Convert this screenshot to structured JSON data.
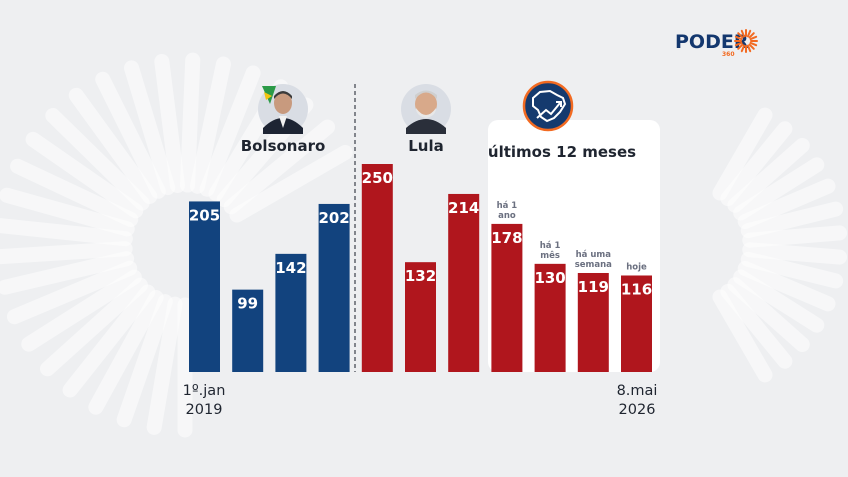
{
  "brand": {
    "name": "PODER",
    "suffix": "360",
    "accent": "#f26a21",
    "color": "#13376e"
  },
  "colors": {
    "bolsonaro": "#12437e",
    "lula": "#b0161d",
    "background": "#eeeff1",
    "panel": "#ffffff"
  },
  "icons": {
    "avatar_bolsonaro": "portrait-icon",
    "avatar_lula": "portrait-icon",
    "trend": "brazil-map-trend-icon",
    "brand": "sunburst-icon"
  },
  "labels": {
    "bolsonaro": "Bolsonaro",
    "lula": "Lula",
    "panel_title": "últimos 12 meses",
    "start_date_line1": "1º.jan",
    "start_date_line2": "2019",
    "end_date_line1": "8.mai",
    "end_date_line2": "2026"
  },
  "chart_data": {
    "type": "bar",
    "values": [
      205,
      99,
      142,
      202,
      250,
      132,
      214,
      178,
      130,
      119,
      116
    ],
    "groups": [
      "bolsonaro",
      "bolsonaro",
      "bolsonaro",
      "bolsonaro",
      "lula",
      "lula",
      "lula",
      "lula",
      "lula",
      "lula",
      "lula"
    ],
    "notes": [
      [],
      [],
      [],
      [],
      [],
      [],
      [],
      [
        "há 1",
        "ano"
      ],
      [
        "há 1",
        "mês"
      ],
      [
        "há uma",
        "semana"
      ],
      [
        "hoje"
      ]
    ],
    "ylim": [
      0,
      250
    ],
    "grid": false,
    "legend": "none"
  }
}
